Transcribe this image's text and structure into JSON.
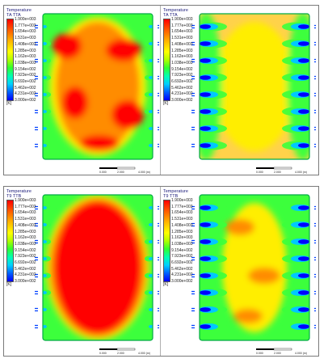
{
  "legend_ticks": [
    "1.900e+003",
    "1.777e+003",
    "1.654e+003",
    "1.531e+003",
    "1.408e+003",
    "1.285e+003",
    "1.162e+003",
    "1.038e+003",
    "9.154e+002",
    "7.923e+002",
    "6.692e+002",
    "5.462e+002",
    "4.231e+002",
    "3.000e+002"
  ],
  "legend_unit": "[K]",
  "scale_labels": [
    "0.000",
    "2.000",
    "4.000 (m)"
  ],
  "colors": {
    "hot": "#ff0000",
    "warm": "#ff8c00",
    "yellow": "#ffee00",
    "green": "#3cff3c",
    "cool": "#00c8ff",
    "cold": "#0000ff"
  },
  "panels": [
    {
      "legend_title": "Temperature",
      "legend_subtitle": "TA TTA",
      "scheme": "hot_edges"
    },
    {
      "legend_title": "Temperature",
      "legend_subtitle": "TA TTA",
      "scheme": "yellow_jets"
    },
    {
      "legend_title": "Temperature",
      "legend_subtitle": "T9 TTB",
      "scheme": "hot_full"
    },
    {
      "legend_title": "Temperature",
      "legend_subtitle": "T9 TTB",
      "scheme": "green_jets"
    }
  ]
}
